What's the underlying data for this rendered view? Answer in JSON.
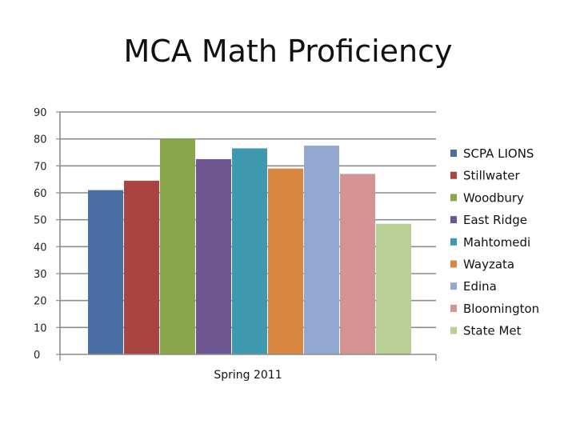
{
  "chart_data": {
    "type": "bar",
    "title": "MCA Math Proficiency",
    "categories": [
      "Spring 2011"
    ],
    "series": [
      {
        "name": "SCPA LIONS",
        "values": [
          61
        ],
        "color": "#4A6FA5"
      },
      {
        "name": "Stillwater",
        "values": [
          64.5
        ],
        "color": "#A94442"
      },
      {
        "name": "Woodbury",
        "values": [
          80
        ],
        "color": "#8AA64A"
      },
      {
        "name": "East Ridge",
        "values": [
          72.5
        ],
        "color": "#6E5690"
      },
      {
        "name": "Mahtomedi",
        "values": [
          76.5
        ],
        "color": "#3E98AE"
      },
      {
        "name": "Wayzata",
        "values": [
          69
        ],
        "color": "#D98640"
      },
      {
        "name": "Edina",
        "values": [
          77.5
        ],
        "color": "#92A8D0"
      },
      {
        "name": "Bloomington",
        "values": [
          67
        ],
        "color": "#D49292"
      },
      {
        "name": "State Met",
        "values": [
          48.5
        ],
        "color": "#BACF96"
      }
    ],
    "ylim": [
      0,
      90
    ],
    "yticks": [
      0,
      10,
      20,
      30,
      40,
      50,
      60,
      70,
      80,
      90
    ],
    "grid": true,
    "legend": "right"
  }
}
